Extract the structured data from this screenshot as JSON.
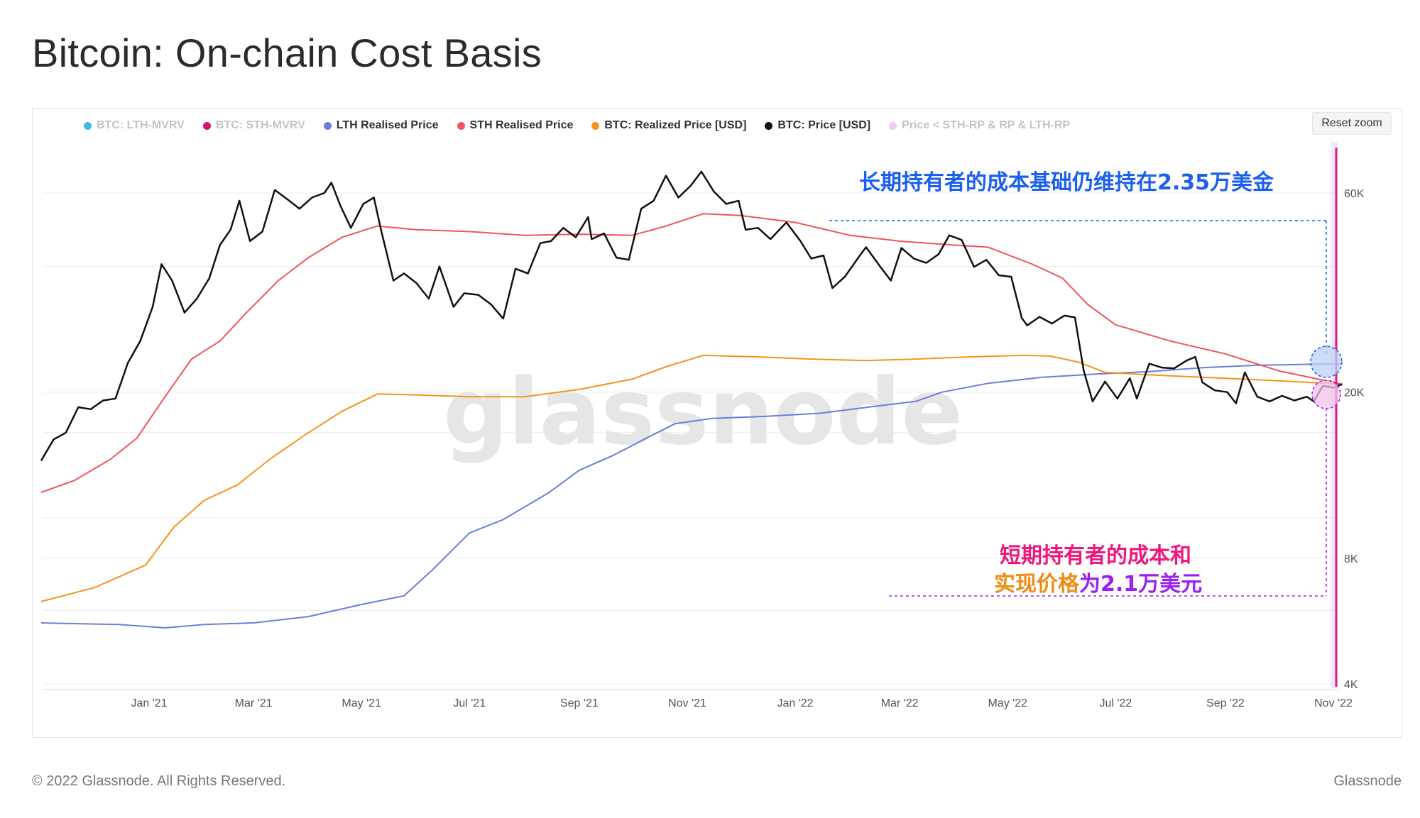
{
  "title": "Bitcoin: On-chain Cost Basis",
  "reset_zoom_label": "Reset zoom",
  "footer": {
    "copyright": "© 2022 Glassnode. All Rights Reserved.",
    "brand": "Glassnode"
  },
  "watermark": "glassnode",
  "annotations": {
    "lth": "长期持有者的成本基础仍维持在2.35万美金",
    "sth_line1": "短期持有者的成本和",
    "sth_line2a": "实现价格",
    "sth_line2b": "为2.1万美元"
  },
  "colors": {
    "lth_mvrv": "#3fb8ea",
    "sth_mvrv": "#d6136d",
    "lth_rp": "#6a7fdb",
    "sth_rp": "#f0555d",
    "realized": "#f7931a",
    "price": "#111111",
    "price_zone": "#e7cff8",
    "annot_blue": "#1a5ff0",
    "annot_pink": "#f0167a",
    "annot_orange": "#f28b12",
    "annot_purple": "#9b1ff0",
    "marker_line": "#e8177f"
  },
  "legend": [
    {
      "label": "BTC: LTH-MVRV",
      "color": "#3fb8ea",
      "muted": true
    },
    {
      "label": "BTC: STH-MVRV",
      "color": "#d6136d",
      "muted": true
    },
    {
      "label": "LTH Realised Price",
      "color": "#6a7fdb",
      "muted": false
    },
    {
      "label": "STH Realised Price",
      "color": "#f0555d",
      "muted": false
    },
    {
      "label": "BTC: Realized Price [USD]",
      "color": "#f7931a",
      "muted": false
    },
    {
      "label": "BTC: Price [USD]",
      "color": "#111111",
      "muted": false
    },
    {
      "label": "Price < STH-RP & RP & LTH-RP",
      "color": "#e7cff8",
      "muted": true
    }
  ],
  "chart_data": {
    "type": "line",
    "title": "Bitcoin: On-chain Cost Basis",
    "y_scale": "log",
    "ylim": [
      3000,
      80000
    ],
    "y_ticks": [
      {
        "value": 60000,
        "label": "60K"
      },
      {
        "value": 20000,
        "label": "20K"
      },
      {
        "value": 8000,
        "label": "8K"
      },
      {
        "value": 4000,
        "label": "4K"
      }
    ],
    "x_range": [
      "2020-11-01",
      "2022-11-08"
    ],
    "x_ticks": [
      {
        "date": "2021-01-01",
        "label": "Jan '21"
      },
      {
        "date": "2021-03-01",
        "label": "Mar '21"
      },
      {
        "date": "2021-05-01",
        "label": "May '21"
      },
      {
        "date": "2021-07-01",
        "label": "Jul '21"
      },
      {
        "date": "2021-09-01",
        "label": "Sep '21"
      },
      {
        "date": "2021-11-01",
        "label": "Nov '21"
      },
      {
        "date": "2022-01-01",
        "label": "Jan '22"
      },
      {
        "date": "2022-03-01",
        "label": "Mar '22"
      },
      {
        "date": "2022-05-01",
        "label": "May '22"
      },
      {
        "date": "2022-07-01",
        "label": "Jul '22"
      },
      {
        "date": "2022-09-01",
        "label": "Sep '22"
      },
      {
        "date": "2022-11-01",
        "label": "Nov '22"
      }
    ],
    "grid": true,
    "legend_position": "top",
    "series": [
      {
        "name": "BTC: Price [USD]",
        "color": "#111111",
        "width": 2.5,
        "points": [
          [
            "2020-11-01",
            13700
          ],
          [
            "2020-11-08",
            15400
          ],
          [
            "2020-11-15",
            16000
          ],
          [
            "2020-11-22",
            18400
          ],
          [
            "2020-11-29",
            18200
          ],
          [
            "2020-12-06",
            19100
          ],
          [
            "2020-12-13",
            19300
          ],
          [
            "2020-12-20",
            23500
          ],
          [
            "2020-12-27",
            26500
          ],
          [
            "2021-01-03",
            32000
          ],
          [
            "2021-01-08",
            40500
          ],
          [
            "2021-01-14",
            37000
          ],
          [
            "2021-01-21",
            31000
          ],
          [
            "2021-01-28",
            33500
          ],
          [
            "2021-02-04",
            37500
          ],
          [
            "2021-02-10",
            45000
          ],
          [
            "2021-02-16",
            49000
          ],
          [
            "2021-02-21",
            57500
          ],
          [
            "2021-02-27",
            46000
          ],
          [
            "2021-03-06",
            48500
          ],
          [
            "2021-03-13",
            61000
          ],
          [
            "2021-03-20",
            58000
          ],
          [
            "2021-03-27",
            55000
          ],
          [
            "2021-04-03",
            58500
          ],
          [
            "2021-04-10",
            60000
          ],
          [
            "2021-04-14",
            63500
          ],
          [
            "2021-04-19",
            56000
          ],
          [
            "2021-04-25",
            49500
          ],
          [
            "2021-05-02",
            56500
          ],
          [
            "2021-05-08",
            58500
          ],
          [
            "2021-05-12",
            49000
          ],
          [
            "2021-05-19",
            37000
          ],
          [
            "2021-05-25",
            38500
          ],
          [
            "2021-06-01",
            36500
          ],
          [
            "2021-06-08",
            33500
          ],
          [
            "2021-06-14",
            40000
          ],
          [
            "2021-06-22",
            32000
          ],
          [
            "2021-06-28",
            34500
          ],
          [
            "2021-07-06",
            34200
          ],
          [
            "2021-07-13",
            32500
          ],
          [
            "2021-07-20",
            30000
          ],
          [
            "2021-07-27",
            39500
          ],
          [
            "2021-08-03",
            38500
          ],
          [
            "2021-08-10",
            45500
          ],
          [
            "2021-08-16",
            46000
          ],
          [
            "2021-08-23",
            49500
          ],
          [
            "2021-08-30",
            47000
          ],
          [
            "2021-09-06",
            52500
          ],
          [
            "2021-09-08",
            46500
          ],
          [
            "2021-09-15",
            48000
          ],
          [
            "2021-09-22",
            42000
          ],
          [
            "2021-09-29",
            41500
          ],
          [
            "2021-10-06",
            55000
          ],
          [
            "2021-10-13",
            57500
          ],
          [
            "2021-10-20",
            66000
          ],
          [
            "2021-10-27",
            58500
          ],
          [
            "2021-11-03",
            62500
          ],
          [
            "2021-11-09",
            67500
          ],
          [
            "2021-11-16",
            60500
          ],
          [
            "2021-11-23",
            56500
          ],
          [
            "2021-11-30",
            57500
          ],
          [
            "2021-12-04",
            49000
          ],
          [
            "2021-12-11",
            49500
          ],
          [
            "2021-12-18",
            46500
          ],
          [
            "2021-12-27",
            51000
          ],
          [
            "2022-01-04",
            46000
          ],
          [
            "2022-01-10",
            41800
          ],
          [
            "2022-01-17",
            42500
          ],
          [
            "2022-01-22",
            35500
          ],
          [
            "2022-01-29",
            37800
          ],
          [
            "2022-02-06",
            42200
          ],
          [
            "2022-02-10",
            44500
          ],
          [
            "2022-02-17",
            40500
          ],
          [
            "2022-02-24",
            37000
          ],
          [
            "2022-03-02",
            44300
          ],
          [
            "2022-03-09",
            41800
          ],
          [
            "2022-03-16",
            40800
          ],
          [
            "2022-03-23",
            42800
          ],
          [
            "2022-03-29",
            47500
          ],
          [
            "2022-04-05",
            46300
          ],
          [
            "2022-04-12",
            39900
          ],
          [
            "2022-04-19",
            41500
          ],
          [
            "2022-04-26",
            38100
          ],
          [
            "2022-05-03",
            37800
          ],
          [
            "2022-05-09",
            30100
          ],
          [
            "2022-05-12",
            28900
          ],
          [
            "2022-05-19",
            30300
          ],
          [
            "2022-05-26",
            29200
          ],
          [
            "2022-06-02",
            30500
          ],
          [
            "2022-06-08",
            30200
          ],
          [
            "2022-06-13",
            22500
          ],
          [
            "2022-06-18",
            19000
          ],
          [
            "2022-06-25",
            21200
          ],
          [
            "2022-07-02",
            19300
          ],
          [
            "2022-07-09",
            21600
          ],
          [
            "2022-07-13",
            19300
          ],
          [
            "2022-07-20",
            23400
          ],
          [
            "2022-07-27",
            22900
          ],
          [
            "2022-08-03",
            22800
          ],
          [
            "2022-08-10",
            23800
          ],
          [
            "2022-08-15",
            24300
          ],
          [
            "2022-08-19",
            21100
          ],
          [
            "2022-08-26",
            20200
          ],
          [
            "2022-09-02",
            20000
          ],
          [
            "2022-09-07",
            18800
          ],
          [
            "2022-09-12",
            22300
          ],
          [
            "2022-09-19",
            19500
          ],
          [
            "2022-09-26",
            19000
          ],
          [
            "2022-10-03",
            19600
          ],
          [
            "2022-10-10",
            19100
          ],
          [
            "2022-10-17",
            19500
          ],
          [
            "2022-10-21",
            19000
          ],
          [
            "2022-10-26",
            20700
          ],
          [
            "2022-11-01",
            20500
          ],
          [
            "2022-11-06",
            20900
          ]
        ]
      },
      {
        "name": "STH Realised Price",
        "color": "#f0555d",
        "width": 2,
        "points": [
          [
            "2020-11-01",
            11500
          ],
          [
            "2020-11-20",
            12300
          ],
          [
            "2020-12-10",
            13800
          ],
          [
            "2020-12-25",
            15500
          ],
          [
            "2021-01-10",
            19500
          ],
          [
            "2021-01-25",
            24000
          ],
          [
            "2021-02-10",
            26500
          ],
          [
            "2021-02-25",
            31000
          ],
          [
            "2021-03-15",
            37000
          ],
          [
            "2021-04-01",
            42000
          ],
          [
            "2021-04-20",
            47000
          ],
          [
            "2021-05-10",
            50000
          ],
          [
            "2021-06-01",
            49000
          ],
          [
            "2021-07-01",
            48500
          ],
          [
            "2021-08-01",
            47500
          ],
          [
            "2021-09-01",
            47800
          ],
          [
            "2021-10-01",
            47500
          ],
          [
            "2021-10-20",
            50000
          ],
          [
            "2021-11-10",
            53500
          ],
          [
            "2021-12-01",
            53000
          ],
          [
            "2022-01-01",
            51000
          ],
          [
            "2022-02-01",
            47500
          ],
          [
            "2022-03-01",
            46000
          ],
          [
            "2022-04-01",
            45000
          ],
          [
            "2022-04-20",
            44500
          ],
          [
            "2022-05-15",
            40500
          ],
          [
            "2022-06-01",
            37500
          ],
          [
            "2022-06-15",
            32500
          ],
          [
            "2022-07-01",
            29000
          ],
          [
            "2022-08-01",
            26500
          ],
          [
            "2022-09-01",
            24700
          ],
          [
            "2022-10-01",
            22500
          ],
          [
            "2022-11-06",
            20900
          ]
        ]
      },
      {
        "name": "BTC: Realized Price [USD]",
        "color": "#f7931a",
        "width": 2,
        "points": [
          [
            "2020-11-01",
            6300
          ],
          [
            "2020-12-01",
            6800
          ],
          [
            "2020-12-30",
            7700
          ],
          [
            "2021-01-15",
            9500
          ],
          [
            "2021-02-01",
            11000
          ],
          [
            "2021-02-20",
            12000
          ],
          [
            "2021-03-10",
            13800
          ],
          [
            "2021-04-01",
            16000
          ],
          [
            "2021-04-20",
            18000
          ],
          [
            "2021-05-10",
            19800
          ],
          [
            "2021-06-01",
            19700
          ],
          [
            "2021-07-01",
            19500
          ],
          [
            "2021-08-01",
            19500
          ],
          [
            "2021-09-01",
            20300
          ],
          [
            "2021-10-01",
            21500
          ],
          [
            "2021-10-20",
            23000
          ],
          [
            "2021-11-10",
            24500
          ],
          [
            "2021-12-10",
            24300
          ],
          [
            "2022-01-10",
            24000
          ],
          [
            "2022-02-10",
            23800
          ],
          [
            "2022-03-10",
            24000
          ],
          [
            "2022-04-10",
            24300
          ],
          [
            "2022-05-10",
            24500
          ],
          [
            "2022-05-25",
            24400
          ],
          [
            "2022-06-10",
            23600
          ],
          [
            "2022-06-25",
            22300
          ],
          [
            "2022-07-20",
            22000
          ],
          [
            "2022-08-20",
            21700
          ],
          [
            "2022-09-20",
            21400
          ],
          [
            "2022-11-06",
            20900
          ]
        ]
      },
      {
        "name": "LTH Realised Price",
        "color": "#6a7fdb",
        "width": 2,
        "points": [
          [
            "2020-11-01",
            5600
          ],
          [
            "2020-12-15",
            5550
          ],
          [
            "2021-01-10",
            5450
          ],
          [
            "2021-02-01",
            5550
          ],
          [
            "2021-03-01",
            5600
          ],
          [
            "2021-04-01",
            5800
          ],
          [
            "2021-05-01",
            6200
          ],
          [
            "2021-05-25",
            6500
          ],
          [
            "2021-06-10",
            7500
          ],
          [
            "2021-07-01",
            9200
          ],
          [
            "2021-07-20",
            9900
          ],
          [
            "2021-08-15",
            11500
          ],
          [
            "2021-09-01",
            13000
          ],
          [
            "2021-09-20",
            14100
          ],
          [
            "2021-10-10",
            15600
          ],
          [
            "2021-10-25",
            16800
          ],
          [
            "2021-11-15",
            17300
          ],
          [
            "2021-12-15",
            17500
          ],
          [
            "2022-01-15",
            17800
          ],
          [
            "2022-02-15",
            18500
          ],
          [
            "2022-03-10",
            19000
          ],
          [
            "2022-03-25",
            20000
          ],
          [
            "2022-04-20",
            21000
          ],
          [
            "2022-05-20",
            21700
          ],
          [
            "2022-06-20",
            22100
          ],
          [
            "2022-07-20",
            22400
          ],
          [
            "2022-08-20",
            22900
          ],
          [
            "2022-09-20",
            23200
          ],
          [
            "2022-11-06",
            23400
          ]
        ]
      }
    ]
  }
}
